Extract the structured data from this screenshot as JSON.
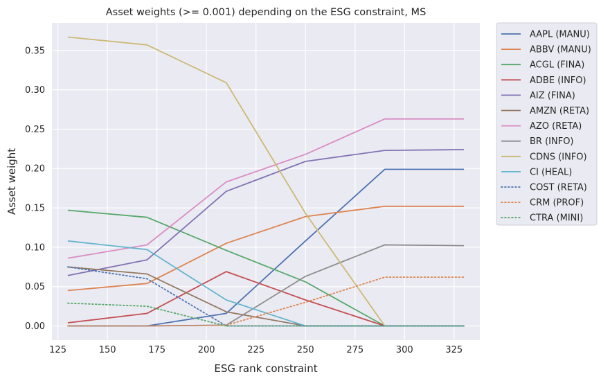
{
  "chart_data": {
    "type": "line",
    "title": "Asset weights (>= 0.001) depending on the ESG constraint, MS",
    "xlabel": "ESG rank constraint",
    "ylabel": "Asset weight",
    "x": [
      130,
      170,
      210,
      250,
      290,
      330
    ],
    "xlim": [
      122,
      338
    ],
    "ylim": [
      -0.018,
      0.385
    ],
    "xticks": [
      125,
      150,
      175,
      200,
      225,
      250,
      275,
      300,
      325
    ],
    "yticks": [
      0.0,
      0.05,
      0.1,
      0.15,
      0.2,
      0.25,
      0.3,
      0.35
    ],
    "ytick_labels": [
      "0.00",
      "0.05",
      "0.10",
      "0.15",
      "0.20",
      "0.25",
      "0.30",
      "0.35"
    ],
    "grid": true,
    "background": "#eaeaf2",
    "legend_position": "outside-right",
    "series": [
      {
        "name": "AAPL (MANU)",
        "color": "#4c72b0",
        "style": "solid",
        "values": [
          0.0,
          0.0,
          0.016,
          0.108,
          0.199,
          0.199
        ]
      },
      {
        "name": "ABBV (MANU)",
        "color": "#dd8452",
        "style": "solid",
        "values": [
          0.045,
          0.054,
          0.105,
          0.139,
          0.152,
          0.152
        ]
      },
      {
        "name": "ACGL (FINA)",
        "color": "#55a868",
        "style": "solid",
        "values": [
          0.147,
          0.138,
          0.096,
          0.056,
          0.0,
          0.0
        ]
      },
      {
        "name": "ADBE (INFO)",
        "color": "#c44e52",
        "style": "solid",
        "values": [
          0.004,
          0.016,
          0.069,
          0.033,
          0.0,
          0.0
        ]
      },
      {
        "name": "AIZ (FINA)",
        "color": "#8172b3",
        "style": "solid",
        "values": [
          0.064,
          0.084,
          0.171,
          0.209,
          0.223,
          0.224
        ]
      },
      {
        "name": "AMZN (RETA)",
        "color": "#937860",
        "style": "solid",
        "values": [
          0.075,
          0.066,
          0.018,
          0.0,
          0.0,
          0.0
        ]
      },
      {
        "name": "AZO (RETA)",
        "color": "#da8bc3",
        "style": "solid",
        "values": [
          0.086,
          0.103,
          0.183,
          0.218,
          0.263,
          0.263
        ]
      },
      {
        "name": "BR (INFO)",
        "color": "#8c8c8c",
        "style": "solid",
        "values": [
          0.0,
          0.0,
          0.001,
          0.063,
          0.103,
          0.102
        ]
      },
      {
        "name": "CDNS (INFO)",
        "color": "#ccb974",
        "style": "solid",
        "values": [
          0.367,
          0.357,
          0.309,
          0.143,
          0.0,
          0.0
        ]
      },
      {
        "name": "CI (HEAL)",
        "color": "#64b5cd",
        "style": "solid",
        "values": [
          0.108,
          0.097,
          0.033,
          0.0,
          0.0,
          0.0
        ]
      },
      {
        "name": "COST (RETA)",
        "color": "#4c72b0",
        "style": "dotted",
        "values": [
          0.075,
          0.06,
          0.0,
          0.0,
          0.0,
          0.0
        ]
      },
      {
        "name": "CRM (PROF)",
        "color": "#dd8452",
        "style": "dotted",
        "values": [
          0.0,
          0.0,
          0.001,
          0.03,
          0.062,
          0.062
        ]
      },
      {
        "name": "CTRA (MINI)",
        "color": "#55a868",
        "style": "dotted",
        "values": [
          0.029,
          0.025,
          0.0,
          0.0,
          0.0,
          0.0
        ]
      }
    ]
  }
}
